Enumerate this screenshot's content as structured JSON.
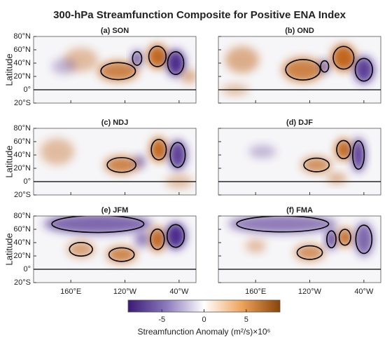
{
  "chart_data": {
    "type": "map-panels",
    "title": "300-hPa Streamfunction Composite for Positive ENA Index",
    "ylabel": "Latitude",
    "panels": [
      {
        "title": "(a) SON"
      },
      {
        "title": "(b) OND"
      },
      {
        "title": "(c) NDJ"
      },
      {
        "title": "(d) DJF"
      },
      {
        "title": "(e) JFM"
      },
      {
        "title": "(f) FMA"
      }
    ],
    "xlim": [
      105,
      345
    ],
    "xticks": [
      {
        "value": 160,
        "label": "160°E"
      },
      {
        "value": 240,
        "label": "120°W"
      },
      {
        "value": 320,
        "label": "40°W"
      }
    ],
    "ylim": [
      -20,
      80
    ],
    "yticks": [
      {
        "value": 80,
        "label": "80°N"
      },
      {
        "value": 60,
        "label": "60°N"
      },
      {
        "value": 40,
        "label": "40°N"
      },
      {
        "value": 20,
        "label": "20°N"
      },
      {
        "value": 0,
        "label": "0°"
      },
      {
        "value": -20,
        "label": "20°S"
      }
    ],
    "colorbar": {
      "label": "Streamfunction Anomaly (m²/s)×10⁶",
      "lim": [
        -9,
        9
      ],
      "ticks": [
        -5,
        0,
        5
      ]
    }
  }
}
